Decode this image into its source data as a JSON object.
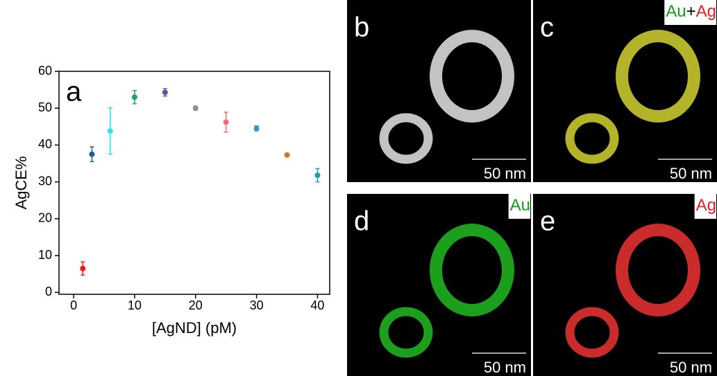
{
  "chart_data": {
    "type": "scatter",
    "panel_label": "a",
    "x_label": "[AgND] (pM)",
    "y_label": "AgCE%",
    "x": [
      1.5,
      3,
      6,
      10,
      15,
      20,
      25,
      30,
      35,
      40
    ],
    "values": [
      6.5,
      37.5,
      43.8,
      53,
      54.3,
      50,
      46.2,
      44.5,
      37.3,
      31.8
    ],
    "errors": [
      1.8,
      2,
      6.3,
      1.8,
      1,
      0.6,
      2.7,
      0.7,
      0.4,
      1.8
    ],
    "colors": [
      "#f01818",
      "#1f5c9a",
      "#30e0f0",
      "#18a860",
      "#5a5a9a",
      "#909090",
      "#f07070",
      "#3a98d0",
      "#e07010",
      "#20a0a0"
    ],
    "xlim": [
      -2.4,
      42
    ],
    "ylim": [
      -0.5,
      60
    ],
    "xticks": [
      0,
      10,
      20,
      30,
      40
    ],
    "yticks": [
      0,
      10,
      20,
      30,
      40,
      50,
      60
    ]
  },
  "panels": [
    {
      "label": "b",
      "scale_bar": "50 nm"
    },
    {
      "label": "c",
      "element_labels": [
        "Au",
        "+",
        "Ag"
      ],
      "scale_bar": "50 nm"
    },
    {
      "label": "d",
      "element_labels": [
        "Au"
      ],
      "scale_bar": "50 nm"
    },
    {
      "label": "e",
      "element_labels": [
        "Ag"
      ],
      "scale_bar": "50 nm"
    }
  ]
}
